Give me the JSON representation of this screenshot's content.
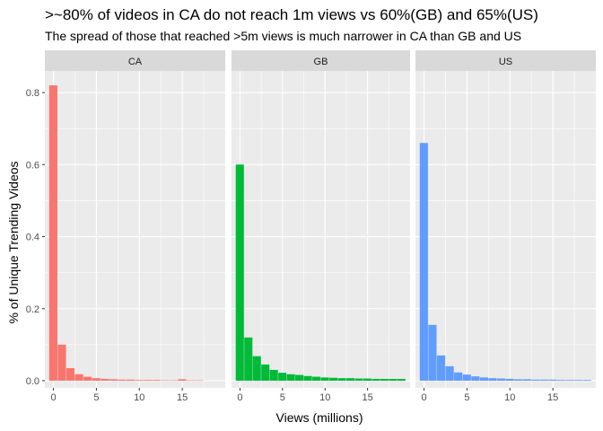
{
  "chart_data": {
    "type": "bar",
    "title": ">~80% of videos in CA do not reach 1m views vs 60%(GB) and 65%(US)",
    "subtitle": "The spread of those that reached >5m views is  much narrower in CA than GB and US",
    "xlabel": "Views (millions)",
    "ylabel": "% of Unique Trending Videos",
    "xlim": [
      -1,
      20
    ],
    "ylim": [
      -0.02,
      0.86
    ],
    "xticks": [
      0,
      5,
      10,
      15
    ],
    "xtick_labels": [
      "0",
      "5",
      "10",
      "15"
    ],
    "yticks": [
      0.0,
      0.2,
      0.4,
      0.6,
      0.8
    ],
    "ytick_labels": [
      "0.0",
      "0.2",
      "0.4",
      "0.6",
      "0.8"
    ],
    "bin_width": 1,
    "x": [
      0,
      1,
      2,
      3,
      4,
      5,
      6,
      7,
      8,
      9,
      10,
      11,
      12,
      13,
      14,
      15,
      16,
      17,
      18,
      19
    ],
    "grid": true,
    "legend": "none",
    "facets": [
      {
        "name": "CA",
        "color": "#F8766D",
        "values": [
          0.82,
          0.1,
          0.035,
          0.018,
          0.011,
          0.007,
          0.005,
          0.004,
          0.003,
          0.003,
          0.002,
          0.002,
          0.002,
          0.001,
          0.001,
          0.004,
          0.001,
          0.001,
          0,
          0
        ]
      },
      {
        "name": "GB",
        "color": "#00BA38",
        "values": [
          0.6,
          0.12,
          0.068,
          0.045,
          0.03,
          0.022,
          0.018,
          0.016,
          0.013,
          0.011,
          0.009,
          0.008,
          0.007,
          0.007,
          0.006,
          0.006,
          0.005,
          0.005,
          0.005,
          0.005
        ]
      },
      {
        "name": "US",
        "color": "#619CFF",
        "values": [
          0.66,
          0.155,
          0.07,
          0.04,
          0.023,
          0.017,
          0.012,
          0.009,
          0.007,
          0.006,
          0.005,
          0.004,
          0.004,
          0.003,
          0.003,
          0.003,
          0.002,
          0.002,
          0.002,
          0.002
        ]
      }
    ]
  }
}
